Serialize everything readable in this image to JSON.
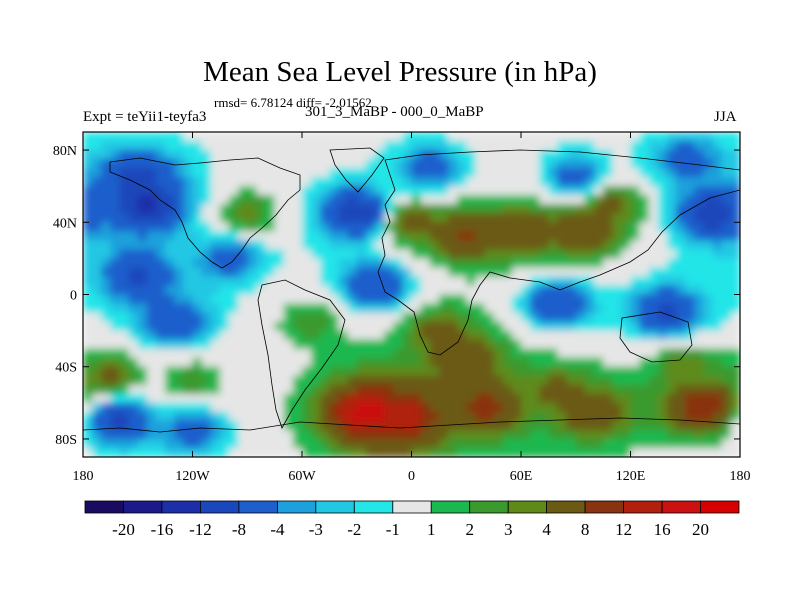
{
  "chart_data": {
    "type": "heatmap",
    "title": "Mean Sea Level Pressure (in hPa)",
    "stats_line": "rmsd= 6.78124 diff= -2.01562",
    "left_label": "Expt = teYii1-teyfa3",
    "subtitle": "301_3_MaBP - 000_0_MaBP",
    "right_label": "JJA",
    "x_axis": {
      "range": [
        -180,
        180
      ],
      "ticks": [
        -180,
        -120,
        -60,
        0,
        60,
        120,
        180
      ],
      "tick_labels": [
        "180",
        "120W",
        "60W",
        "0",
        "60E",
        "120E",
        "180"
      ]
    },
    "y_axis": {
      "range": [
        -90,
        90
      ],
      "ticks": [
        80,
        40,
        0,
        -40,
        -80
      ],
      "tick_labels": [
        "80N",
        "40N",
        "0",
        "40S",
        "80S"
      ]
    },
    "colorbar": {
      "levels": [
        "-20",
        "-16",
        "-12",
        "-8",
        "-4",
        "-3",
        "-2",
        "-1",
        "1",
        "2",
        "3",
        "4",
        "8",
        "12",
        "16",
        "20"
      ],
      "level_values": [
        -20,
        -16,
        -12,
        -8,
        -4,
        -3,
        -2,
        -1,
        1,
        2,
        3,
        4,
        8,
        12,
        16,
        20
      ],
      "colors": [
        "#1a0a60",
        "#1c1a8a",
        "#1d2fa8",
        "#1a47bb",
        "#1e5fcc",
        "#1ea0dc",
        "#21c7e3",
        "#24e5e8",
        "#e6e6e6",
        "#1ab84f",
        "#3a9a2e",
        "#5e8a1a",
        "#6b5a13",
        "#8a3310",
        "#b0200f",
        "#cc1111",
        "#d60000"
      ]
    },
    "field_blobs": [
      {
        "lon": -145,
        "lat": 50,
        "value": -14
      },
      {
        "lon": -150,
        "lat": 65,
        "value": -10
      },
      {
        "lon": -150,
        "lat": 10,
        "value": -9
      },
      {
        "lon": -130,
        "lat": -15,
        "value": -8
      },
      {
        "lon": -100,
        "lat": 20,
        "value": -6
      },
      {
        "lon": -30,
        "lat": 45,
        "value": -12
      },
      {
        "lon": -20,
        "lat": 5,
        "value": -9
      },
      {
        "lon": 10,
        "lat": 70,
        "value": -6
      },
      {
        "lon": 90,
        "lat": 65,
        "value": -6
      },
      {
        "lon": 80,
        "lat": -5,
        "value": -8
      },
      {
        "lon": 140,
        "lat": -10,
        "value": -10
      },
      {
        "lon": 165,
        "lat": 45,
        "value": -12
      },
      {
        "lon": 150,
        "lat": 75,
        "value": -6
      },
      {
        "lon": -160,
        "lat": -70,
        "value": -10
      },
      {
        "lon": -120,
        "lat": -75,
        "value": -6
      },
      {
        "lon": -90,
        "lat": 45,
        "value": 4
      },
      {
        "lon": -55,
        "lat": -15,
        "value": 3
      },
      {
        "lon": 0,
        "lat": 40,
        "value": 6
      },
      {
        "lon": 30,
        "lat": 33,
        "value": 9
      },
      {
        "lon": 60,
        "lat": 35,
        "value": 8
      },
      {
        "lon": 95,
        "lat": 35,
        "value": 9
      },
      {
        "lon": 110,
        "lat": 50,
        "value": 5
      },
      {
        "lon": 15,
        "lat": -20,
        "value": 5
      },
      {
        "lon": 30,
        "lat": -35,
        "value": 8
      },
      {
        "lon": -25,
        "lat": -65,
        "value": 20
      },
      {
        "lon": -5,
        "lat": -68,
        "value": 17
      },
      {
        "lon": 40,
        "lat": -62,
        "value": 10
      },
      {
        "lon": 80,
        "lat": -52,
        "value": 5
      },
      {
        "lon": 100,
        "lat": -65,
        "value": 8
      },
      {
        "lon": 160,
        "lat": -62,
        "value": 12
      },
      {
        "lon": -165,
        "lat": -45,
        "value": 5
      },
      {
        "lon": -120,
        "lat": -48,
        "value": 3
      },
      {
        "lon": 150,
        "lat": -40,
        "value": 4
      }
    ]
  }
}
